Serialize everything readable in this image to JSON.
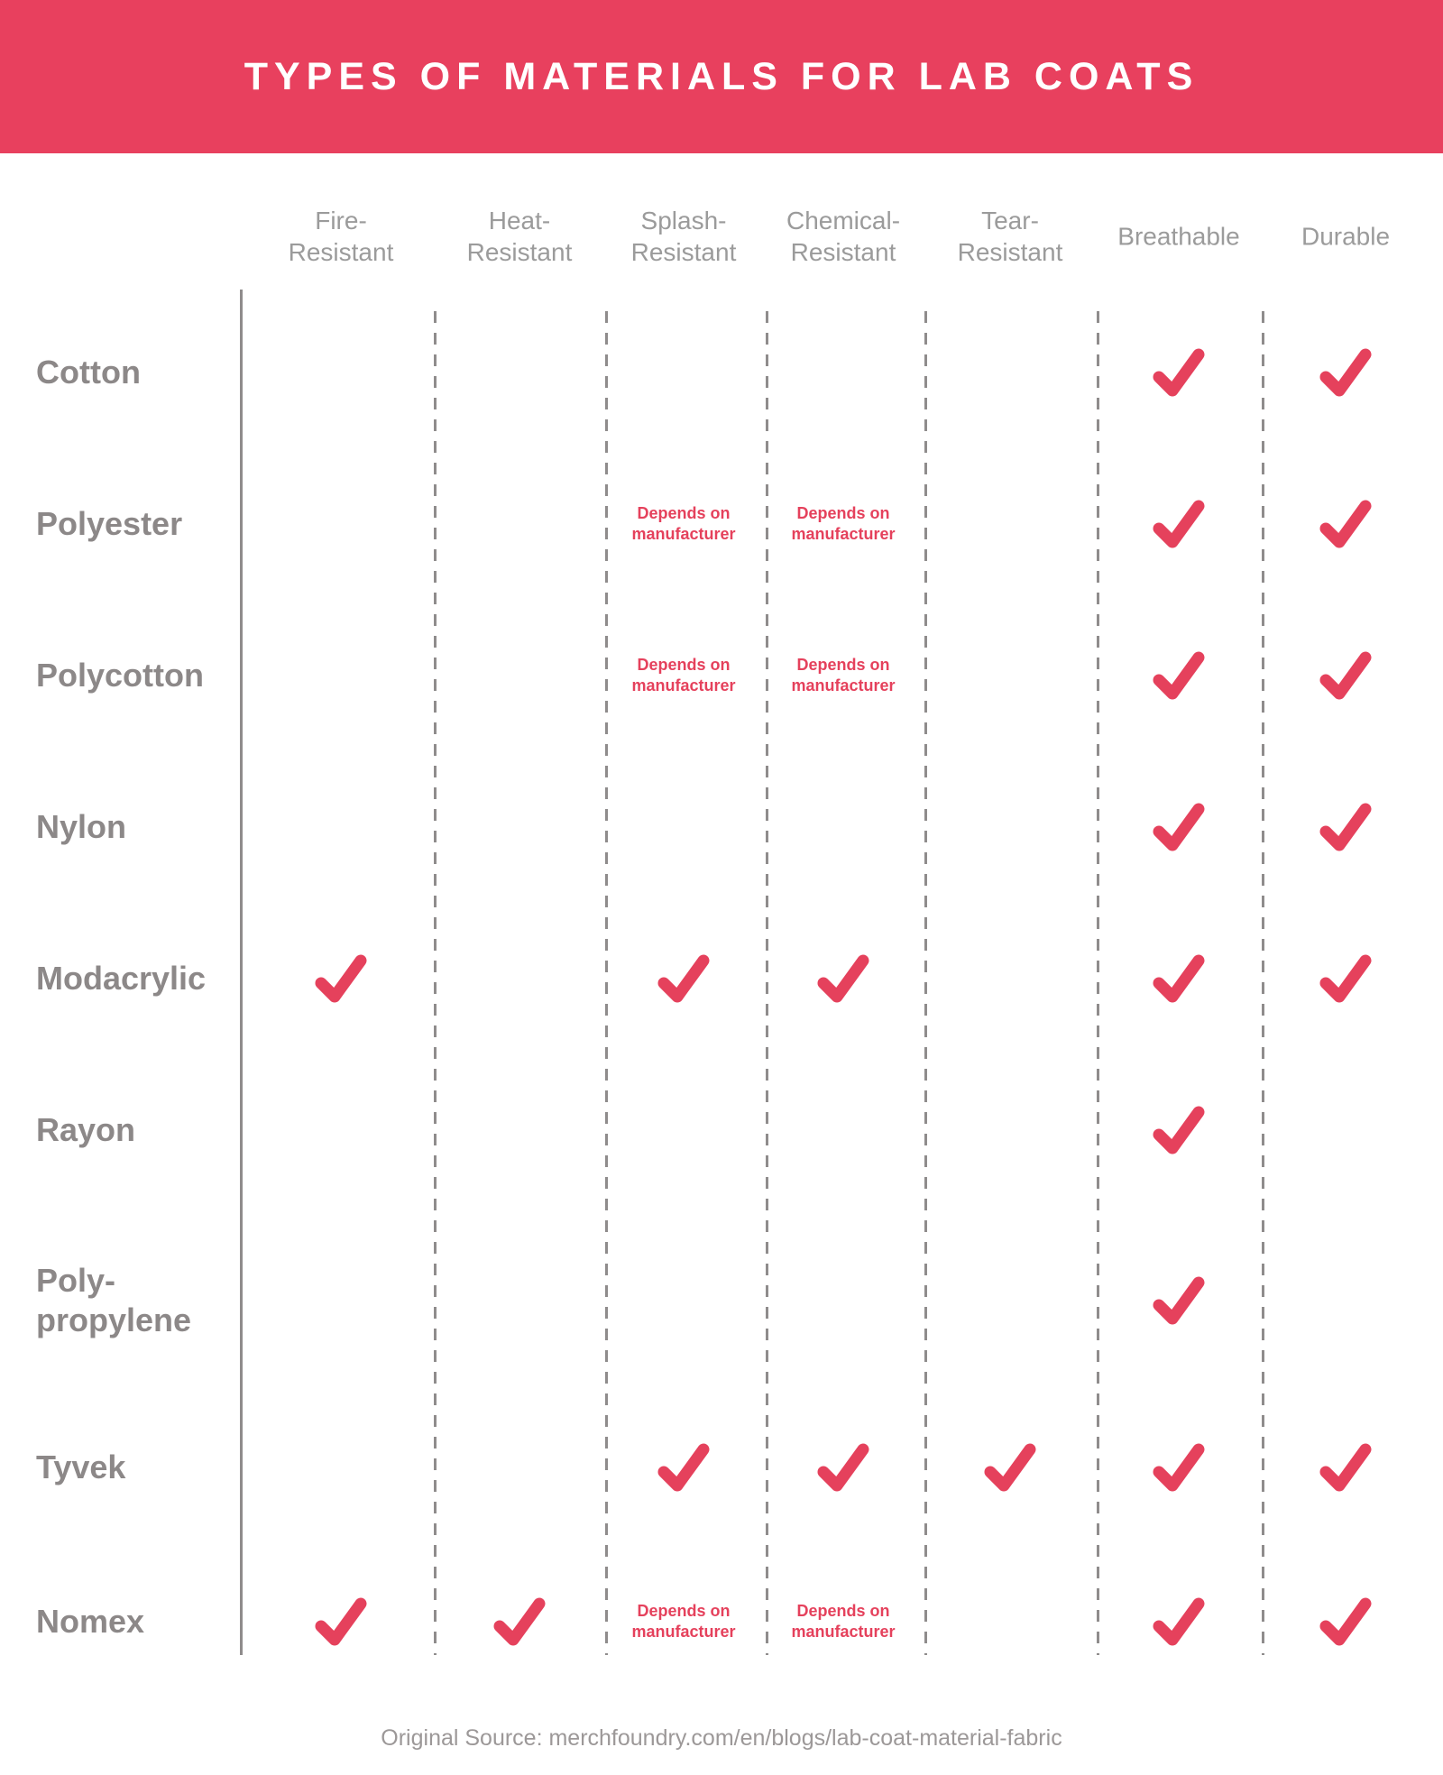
{
  "banner": {
    "title": "TYPES OF MATERIALS FOR LAB COATS"
  },
  "depends_note": {
    "line1": "Depends on",
    "line2": "manufacturer"
  },
  "footer": {
    "source_text": "Original Source: merchfoundry.com/en/blogs/lab-coat-material-fabric"
  },
  "colors": {
    "banner": "#e8405e",
    "accent": "#e5415c",
    "row_label": "#8c8888",
    "column_header": "#9b9b9b",
    "line": "#8f8c8c",
    "footer": "#9c9898"
  },
  "icons": {
    "check": "check-icon"
  },
  "chart_data": {
    "type": "table",
    "title": "TYPES OF MATERIALS FOR LAB COATS",
    "columns": [
      "Fire-Resistant",
      "Heat-Resistant",
      "Splash-Resistant",
      "Chemical-Resistant",
      "Tear-Resistant",
      "Breathable",
      "Durable"
    ],
    "column_label_lines": [
      [
        "Fire-",
        "Resistant"
      ],
      [
        "Heat-",
        "Resistant"
      ],
      [
        "Splash-",
        "Resistant"
      ],
      [
        "Chemical-",
        "Resistant"
      ],
      [
        "Tear-",
        "Resistant"
      ],
      [
        "Breathable"
      ],
      [
        "Durable"
      ]
    ],
    "rows": [
      "Cotton",
      "Polyester",
      "Polycotton",
      "Nylon",
      "Modacrylic",
      "Rayon",
      "Poly-propylene",
      "Tyvek",
      "Nomex"
    ],
    "row_label_lines": [
      [
        "Cotton"
      ],
      [
        "Polyester"
      ],
      [
        "Polycotton"
      ],
      [
        "Nylon"
      ],
      [
        "Modacrylic"
      ],
      [
        "Rayon"
      ],
      [
        "Poly-",
        "propylene"
      ],
      [
        "Tyvek"
      ],
      [
        "Nomex"
      ]
    ],
    "values": [
      [
        "",
        "",
        "",
        "",
        "",
        "check",
        "check"
      ],
      [
        "",
        "",
        "depends",
        "depends",
        "",
        "check",
        "check"
      ],
      [
        "",
        "",
        "depends",
        "depends",
        "",
        "check",
        "check"
      ],
      [
        "",
        "",
        "",
        "",
        "",
        "check",
        "check"
      ],
      [
        "check",
        "",
        "check",
        "check",
        "",
        "check",
        "check"
      ],
      [
        "",
        "",
        "",
        "",
        "",
        "check",
        ""
      ],
      [
        "",
        "",
        "",
        "",
        "",
        "check",
        ""
      ],
      [
        "",
        "",
        "check",
        "check",
        "check",
        "check",
        "check"
      ],
      [
        "check",
        "check",
        "depends",
        "depends",
        "",
        "check",
        "check"
      ]
    ],
    "value_legend": {
      "check": "has this property",
      "depends": "Depends on manufacturer",
      "": "does not have this property"
    },
    "layout_hints": {
      "grid": "dashed vertical separators between attribute columns, solid vertical line after row labels",
      "legend_position": "none"
    }
  }
}
